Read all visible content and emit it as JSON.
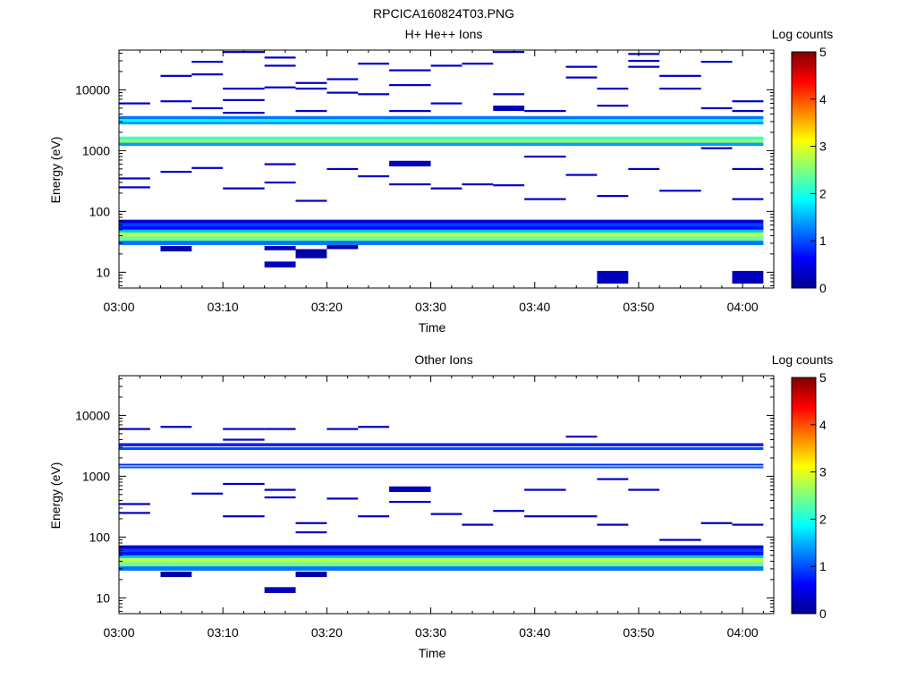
{
  "figure_title": "RPCICA160824T03.PNG",
  "panels": [
    {
      "title": "H+ He++ Ions",
      "xlabel": "Time",
      "ylabel": "Energy (eV)",
      "colorbar_label": "Log counts"
    },
    {
      "title": "Other Ions",
      "xlabel": "Time",
      "ylabel": "Energy (eV)",
      "colorbar_label": "Log counts"
    }
  ],
  "chart_data": [
    {
      "type": "heatmap",
      "title": "H+ He++ Ions",
      "xlabel": "Time",
      "ylabel": "Energy (eV)",
      "colorbar_label": "Log counts",
      "colorbar_ticks": [
        "0",
        "1",
        "2",
        "3",
        "4",
        "5"
      ],
      "colorbar_range": [
        0,
        5
      ],
      "colormap": "jet",
      "x_tick_labels": [
        "03:00",
        "03:10",
        "03:20",
        "03:30",
        "03:40",
        "03:50",
        "04:00"
      ],
      "x_range_minutes": [
        0,
        63
      ],
      "y_tick_labels": [
        "10",
        "100",
        "1000",
        "10000"
      ],
      "y_scale": "log",
      "y_range": [
        5.5,
        45000
      ],
      "bands": [
        {
          "t": [
            "03:00",
            "04:02"
          ],
          "e": [
            28,
            33
          ],
          "v": 1.2
        },
        {
          "t": [
            "03:00",
            "04:02"
          ],
          "e": [
            33,
            39
          ],
          "v": 2.4
        },
        {
          "t": [
            "03:00",
            "04:02"
          ],
          "e": [
            39,
            45
          ],
          "v": 2.8
        },
        {
          "t": [
            "03:00",
            "04:02"
          ],
          "e": [
            45,
            50
          ],
          "v": 1.6
        },
        {
          "t": [
            "03:00",
            "04:02"
          ],
          "e": [
            50,
            57
          ],
          "v": 0.7
        },
        {
          "t": [
            "03:00",
            "04:02"
          ],
          "e": [
            57,
            64
          ],
          "v": 0.9
        },
        {
          "t": [
            "03:00",
            "04:02"
          ],
          "e": [
            64,
            73
          ],
          "v": 0.4
        },
        {
          "t": [
            "03:00",
            "04:02"
          ],
          "e": [
            1200,
            1350
          ],
          "v": 1.4
        },
        {
          "t": [
            "03:00",
            "04:02"
          ],
          "e": [
            1350,
            1500
          ],
          "v": 2.6
        },
        {
          "t": [
            "03:00",
            "04:02"
          ],
          "e": [
            1500,
            1700
          ],
          "v": 2.2
        },
        {
          "t": [
            "03:00",
            "04:02"
          ],
          "e": [
            2700,
            3000
          ],
          "v": 1.4
        },
        {
          "t": [
            "03:00",
            "04:02"
          ],
          "e": [
            3000,
            3300
          ],
          "v": 1.9
        },
        {
          "t": [
            "03:00",
            "04:02"
          ],
          "e": [
            3300,
            3700
          ],
          "v": 1.2
        }
      ],
      "blocks": [
        {
          "t": [
            "03:14",
            "03:17"
          ],
          "e": [
            12,
            15
          ],
          "v": 0.3
        },
        {
          "t": [
            "03:17",
            "03:20"
          ],
          "e": [
            17,
            24
          ],
          "v": 0.2
        },
        {
          "t": [
            "03:46",
            "03:49"
          ],
          "e": [
            6.5,
            10.5
          ],
          "v": 0.3
        },
        {
          "t": [
            "03:59",
            "04:02"
          ],
          "e": [
            6.5,
            10.5
          ],
          "v": 0.3
        },
        {
          "t": [
            "03:04",
            "03:07"
          ],
          "e": [
            22,
            27
          ],
          "v": 0.2
        },
        {
          "t": [
            "03:14",
            "03:17"
          ],
          "e": [
            23,
            27
          ],
          "v": 0.2
        },
        {
          "t": [
            "03:20",
            "03:23"
          ],
          "e": [
            24,
            28
          ],
          "v": 0.2
        },
        {
          "t": [
            "03:26",
            "03:30"
          ],
          "e": [
            550,
            680
          ],
          "v": 0.3
        },
        {
          "t": [
            "03:36",
            "03:39"
          ],
          "e": [
            4500,
            5500
          ],
          "v": 0.3
        }
      ],
      "lines": [
        {
          "t": [
            "03:00",
            "03:03"
          ],
          "e": 6000
        },
        {
          "t": [
            "03:00",
            "03:03"
          ],
          "e": 350
        },
        {
          "t": [
            "03:00",
            "03:03"
          ],
          "e": 250
        },
        {
          "t": [
            "03:04",
            "03:07"
          ],
          "e": 17000
        },
        {
          "t": [
            "03:04",
            "03:07"
          ],
          "e": 6500
        },
        {
          "t": [
            "03:04",
            "03:07"
          ],
          "e": 450
        },
        {
          "t": [
            "03:07",
            "03:10"
          ],
          "e": 29000
        },
        {
          "t": [
            "03:07",
            "03:10"
          ],
          "e": 18000
        },
        {
          "t": [
            "03:07",
            "03:10"
          ],
          "e": 5000
        },
        {
          "t": [
            "03:07",
            "03:10"
          ],
          "e": 520
        },
        {
          "t": [
            "03:10",
            "03:14"
          ],
          "e": 42000
        },
        {
          "t": [
            "03:10",
            "03:14"
          ],
          "e": 10500
        },
        {
          "t": [
            "03:10",
            "03:14"
          ],
          "e": 6800
        },
        {
          "t": [
            "03:10",
            "03:14"
          ],
          "e": 4200
        },
        {
          "t": [
            "03:10",
            "03:14"
          ],
          "e": 240
        },
        {
          "t": [
            "03:14",
            "03:17"
          ],
          "e": 34000
        },
        {
          "t": [
            "03:14",
            "03:17"
          ],
          "e": 25000
        },
        {
          "t": [
            "03:14",
            "03:17"
          ],
          "e": 11000
        },
        {
          "t": [
            "03:14",
            "03:17"
          ],
          "e": 600
        },
        {
          "t": [
            "03:14",
            "03:17"
          ],
          "e": 300
        },
        {
          "t": [
            "03:17",
            "03:20"
          ],
          "e": 13000
        },
        {
          "t": [
            "03:17",
            "03:20"
          ],
          "e": 10500
        },
        {
          "t": [
            "03:17",
            "03:20"
          ],
          "e": 4500
        },
        {
          "t": [
            "03:17",
            "03:20"
          ],
          "e": 150
        },
        {
          "t": [
            "03:20",
            "03:23"
          ],
          "e": 15000
        },
        {
          "t": [
            "03:20",
            "03:23"
          ],
          "e": 9000
        },
        {
          "t": [
            "03:20",
            "03:23"
          ],
          "e": 500
        },
        {
          "t": [
            "03:23",
            "03:26"
          ],
          "e": 27000
        },
        {
          "t": [
            "03:23",
            "03:26"
          ],
          "e": 8500
        },
        {
          "t": [
            "03:23",
            "03:26"
          ],
          "e": 380
        },
        {
          "t": [
            "03:26",
            "03:30"
          ],
          "e": 21000
        },
        {
          "t": [
            "03:26",
            "03:30"
          ],
          "e": 12000
        },
        {
          "t": [
            "03:26",
            "03:30"
          ],
          "e": 4500
        },
        {
          "t": [
            "03:26",
            "03:30"
          ],
          "e": 280
        },
        {
          "t": [
            "03:30",
            "03:33"
          ],
          "e": 25000
        },
        {
          "t": [
            "03:30",
            "03:33"
          ],
          "e": 6000
        },
        {
          "t": [
            "03:30",
            "03:33"
          ],
          "e": 240
        },
        {
          "t": [
            "03:33",
            "03:36"
          ],
          "e": 27000
        },
        {
          "t": [
            "03:33",
            "03:36"
          ],
          "e": 280
        },
        {
          "t": [
            "03:36",
            "03:39"
          ],
          "e": 42000
        },
        {
          "t": [
            "03:36",
            "03:39"
          ],
          "e": 8500
        },
        {
          "t": [
            "03:36",
            "03:39"
          ],
          "e": 270
        },
        {
          "t": [
            "03:39",
            "03:43"
          ],
          "e": 4500
        },
        {
          "t": [
            "03:39",
            "03:43"
          ],
          "e": 800
        },
        {
          "t": [
            "03:39",
            "03:43"
          ],
          "e": 160
        },
        {
          "t": [
            "03:43",
            "03:46"
          ],
          "e": 24000
        },
        {
          "t": [
            "03:43",
            "03:46"
          ],
          "e": 16000
        },
        {
          "t": [
            "03:43",
            "03:46"
          ],
          "e": 400
        },
        {
          "t": [
            "03:46",
            "03:49"
          ],
          "e": 10500
        },
        {
          "t": [
            "03:46",
            "03:49"
          ],
          "e": 5500
        },
        {
          "t": [
            "03:46",
            "03:49"
          ],
          "e": 180
        },
        {
          "t": [
            "03:49",
            "03:52"
          ],
          "e": 39000
        },
        {
          "t": [
            "03:49",
            "03:52"
          ],
          "e": 30000
        },
        {
          "t": [
            "03:49",
            "03:52"
          ],
          "e": 24000
        },
        {
          "t": [
            "03:49",
            "03:52"
          ],
          "e": 500
        },
        {
          "t": [
            "03:52",
            "03:56"
          ],
          "e": 17000
        },
        {
          "t": [
            "03:52",
            "03:56"
          ],
          "e": 10500
        },
        {
          "t": [
            "03:52",
            "03:56"
          ],
          "e": 220
        },
        {
          "t": [
            "03:56",
            "03:59"
          ],
          "e": 29000
        },
        {
          "t": [
            "03:56",
            "03:59"
          ],
          "e": 5000
        },
        {
          "t": [
            "03:56",
            "03:59"
          ],
          "e": 1100
        },
        {
          "t": [
            "03:59",
            "04:02"
          ],
          "e": 6500
        },
        {
          "t": [
            "03:59",
            "04:02"
          ],
          "e": 4500
        },
        {
          "t": [
            "03:59",
            "04:02"
          ],
          "e": 500
        },
        {
          "t": [
            "03:59",
            "04:02"
          ],
          "e": 160
        }
      ]
    },
    {
      "type": "heatmap",
      "title": "Other Ions",
      "xlabel": "Time",
      "ylabel": "Energy (eV)",
      "colorbar_label": "Log counts",
      "colorbar_ticks": [
        "0",
        "1",
        "2",
        "3",
        "4",
        "5"
      ],
      "colorbar_range": [
        0,
        5
      ],
      "colormap": "jet",
      "x_tick_labels": [
        "03:00",
        "03:10",
        "03:20",
        "03:30",
        "03:40",
        "03:50",
        "04:00"
      ],
      "x_range_minutes": [
        0,
        63
      ],
      "y_tick_labels": [
        "10",
        "100",
        "1000",
        "10000"
      ],
      "y_scale": "log",
      "y_range": [
        5.5,
        45000
      ],
      "bands": [
        {
          "t": [
            "03:00",
            "04:02"
          ],
          "e": [
            28,
            33
          ],
          "v": 1.2
        },
        {
          "t": [
            "03:00",
            "04:02"
          ],
          "e": [
            33,
            39
          ],
          "v": 2.4
        },
        {
          "t": [
            "03:00",
            "04:02"
          ],
          "e": [
            39,
            45
          ],
          "v": 2.8
        },
        {
          "t": [
            "03:00",
            "04:02"
          ],
          "e": [
            45,
            50
          ],
          "v": 1.6
        },
        {
          "t": [
            "03:00",
            "04:02"
          ],
          "e": [
            50,
            57
          ],
          "v": 0.7
        },
        {
          "t": [
            "03:00",
            "04:02"
          ],
          "e": [
            57,
            64
          ],
          "v": 0.9
        },
        {
          "t": [
            "03:00",
            "04:02"
          ],
          "e": [
            64,
            73
          ],
          "v": 0.4
        },
        {
          "t": [
            "03:00",
            "04:02"
          ],
          "e": [
            1350,
            1450
          ],
          "v": 1.1
        },
        {
          "t": [
            "03:00",
            "04:02"
          ],
          "e": [
            1500,
            1600
          ],
          "v": 0.8
        },
        {
          "t": [
            "03:00",
            "04:02"
          ],
          "e": [
            2700,
            3000
          ],
          "v": 1.0
        },
        {
          "t": [
            "03:00",
            "04:02"
          ],
          "e": [
            3100,
            3500
          ],
          "v": 0.8
        }
      ],
      "blocks": [
        {
          "t": [
            "03:14",
            "03:17"
          ],
          "e": [
            12,
            15
          ],
          "v": 0.3
        },
        {
          "t": [
            "03:04",
            "03:07"
          ],
          "e": [
            22,
            27
          ],
          "v": 0.2
        },
        {
          "t": [
            "03:17",
            "03:20"
          ],
          "e": [
            22,
            27
          ],
          "v": 0.2
        },
        {
          "t": [
            "03:26",
            "03:30"
          ],
          "e": [
            550,
            680
          ],
          "v": 0.3
        }
      ],
      "lines": [
        {
          "t": [
            "03:00",
            "03:03"
          ],
          "e": 6000
        },
        {
          "t": [
            "03:00",
            "03:03"
          ],
          "e": 350
        },
        {
          "t": [
            "03:00",
            "03:03"
          ],
          "e": 250
        },
        {
          "t": [
            "03:04",
            "03:07"
          ],
          "e": 6500
        },
        {
          "t": [
            "03:07",
            "03:10"
          ],
          "e": 520
        },
        {
          "t": [
            "03:10",
            "03:14"
          ],
          "e": 6000
        },
        {
          "t": [
            "03:10",
            "03:14"
          ],
          "e": 4000
        },
        {
          "t": [
            "03:10",
            "03:14"
          ],
          "e": 750
        },
        {
          "t": [
            "03:10",
            "03:14"
          ],
          "e": 220
        },
        {
          "t": [
            "03:14",
            "03:17"
          ],
          "e": 6000
        },
        {
          "t": [
            "03:14",
            "03:17"
          ],
          "e": 600
        },
        {
          "t": [
            "03:14",
            "03:17"
          ],
          "e": 450
        },
        {
          "t": [
            "03:17",
            "03:20"
          ],
          "e": 170
        },
        {
          "t": [
            "03:17",
            "03:20"
          ],
          "e": 120
        },
        {
          "t": [
            "03:20",
            "03:23"
          ],
          "e": 6000
        },
        {
          "t": [
            "03:20",
            "03:23"
          ],
          "e": 430
        },
        {
          "t": [
            "03:23",
            "03:26"
          ],
          "e": 6500
        },
        {
          "t": [
            "03:23",
            "03:26"
          ],
          "e": 220
        },
        {
          "t": [
            "03:26",
            "03:30"
          ],
          "e": 380
        },
        {
          "t": [
            "03:30",
            "03:33"
          ],
          "e": 240
        },
        {
          "t": [
            "03:33",
            "03:36"
          ],
          "e": 160
        },
        {
          "t": [
            "03:36",
            "03:39"
          ],
          "e": 270
        },
        {
          "t": [
            "03:39",
            "03:43"
          ],
          "e": 600
        },
        {
          "t": [
            "03:39",
            "03:43"
          ],
          "e": 220
        },
        {
          "t": [
            "03:43",
            "03:46"
          ],
          "e": 4500
        },
        {
          "t": [
            "03:43",
            "03:46"
          ],
          "e": 220
        },
        {
          "t": [
            "03:46",
            "03:49"
          ],
          "e": 900
        },
        {
          "t": [
            "03:46",
            "03:49"
          ],
          "e": 160
        },
        {
          "t": [
            "03:49",
            "03:52"
          ],
          "e": 600
        },
        {
          "t": [
            "03:52",
            "03:56"
          ],
          "e": 90
        },
        {
          "t": [
            "03:56",
            "03:59"
          ],
          "e": 170
        },
        {
          "t": [
            "03:59",
            "04:02"
          ],
          "e": 160
        }
      ]
    }
  ]
}
